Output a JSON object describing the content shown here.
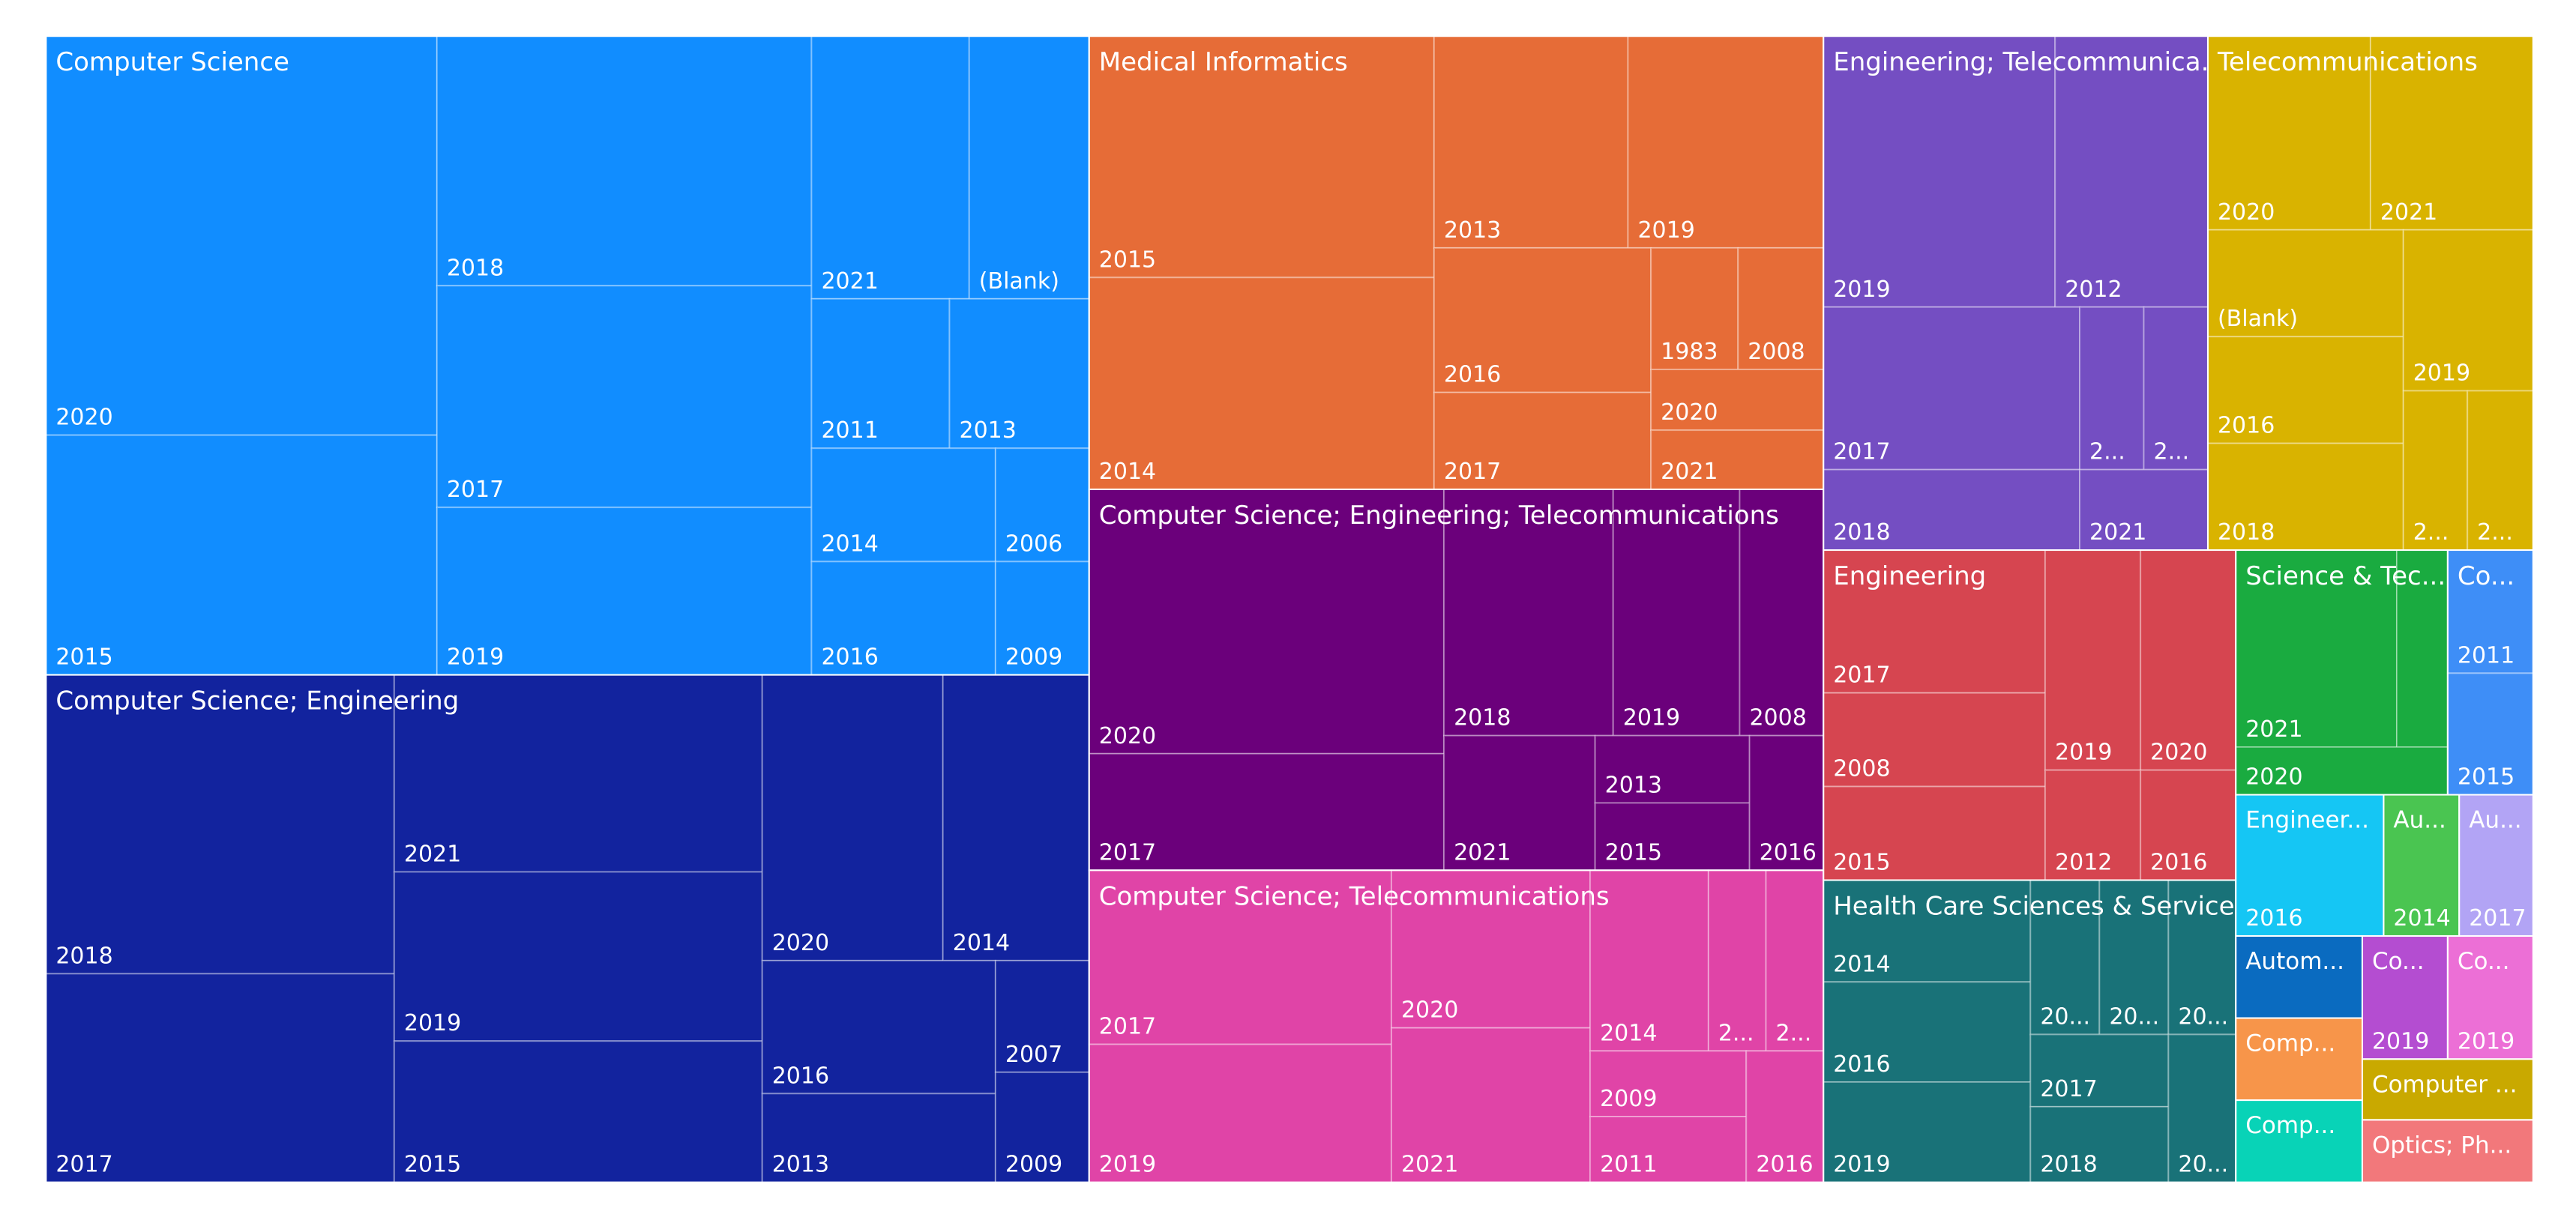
{
  "chart_data": {
    "type": "treemap",
    "title": "",
    "groups": [
      {
        "name": "Computer Science",
        "color": "#118dff",
        "items": [
          {
            "label": "2020",
            "value": 70
          },
          {
            "label": "2015",
            "value": 42
          },
          {
            "label": "2018",
            "value": 45
          },
          {
            "label": "2017",
            "value": 40
          },
          {
            "label": "2019",
            "value": 30
          },
          {
            "label": "2021",
            "value": 16
          },
          {
            "label": "(Blank)",
            "value": 13
          },
          {
            "label": "2011",
            "value": 14
          },
          {
            "label": "2013",
            "value": 12
          },
          {
            "label": "2014",
            "value": 11
          },
          {
            "label": "2006",
            "value": 5.5
          },
          {
            "label": "2016",
            "value": 11
          },
          {
            "label": "2009",
            "value": 5.5
          }
        ]
      },
      {
        "name": "Computer Science; Engineering",
        "color": "#12239e",
        "items": [
          {
            "label": "2018",
            "value": 47
          },
          {
            "label": "2017",
            "value": 35
          },
          {
            "label": "2021",
            "value": 33
          },
          {
            "label": "2019",
            "value": 30
          },
          {
            "label": "2015",
            "value": 24
          },
          {
            "label": "2020",
            "value": 26
          },
          {
            "label": "2014",
            "value": 12
          },
          {
            "label": "2016",
            "value": 17
          },
          {
            "label": "2013",
            "value": 11
          },
          {
            "label": "2007",
            "value": 7
          },
          {
            "label": "2009",
            "value": 5.5
          }
        ]
      },
      {
        "name": "Medical Informatics",
        "color": "#e66c37",
        "items": [
          {
            "label": "2015",
            "value": 33
          },
          {
            "label": "2014",
            "value": 29
          },
          {
            "label": "2013",
            "value": 18
          },
          {
            "label": "2019",
            "value": 17
          },
          {
            "label": "2016",
            "value": 15
          },
          {
            "label": "2017",
            "value": 10
          },
          {
            "label": "1983",
            "value": 4.5
          },
          {
            "label": "2008",
            "value": 4.5
          },
          {
            "label": "2020",
            "value": 3
          },
          {
            "label": "2021",
            "value": 3.5
          }
        ]
      },
      {
        "name": "Computer Science; Engineering; Telecommunications",
        "color": "#6b007b",
        "items": [
          {
            "label": "2020",
            "value": 32
          },
          {
            "label": "2017",
            "value": 15
          },
          {
            "label": "2018",
            "value": 17
          },
          {
            "label": "2021",
            "value": 9
          },
          {
            "label": "2019",
            "value": 12
          },
          {
            "label": "2008",
            "value": 6.5
          },
          {
            "label": "2013",
            "value": 5
          },
          {
            "label": "2015",
            "value": 5
          },
          {
            "label": "2016",
            "value": 5
          }
        ]
      },
      {
        "name": "Computer Science; Telecommunications",
        "color": "#e044a7",
        "items": [
          {
            "label": "2017",
            "value": 18
          },
          {
            "label": "2019",
            "value": 16
          },
          {
            "label": "2020",
            "value": 16
          },
          {
            "label": "2021",
            "value": 18
          },
          {
            "label": "2014",
            "value": 9
          },
          {
            "label": "2...",
            "value": 3
          },
          {
            "label": "2...",
            "value": 3
          },
          {
            "label": "2009",
            "value": 5
          },
          {
            "label": "2011",
            "value": 5
          },
          {
            "label": "2016",
            "value": 6
          }
        ]
      },
      {
        "name": "Engineering; Telecommunica...",
        "color": "#744ec2",
        "items": [
          {
            "label": "2019",
            "value": 19
          },
          {
            "label": "2012",
            "value": 12
          },
          {
            "label": "2017",
            "value": 13
          },
          {
            "label": "2...",
            "value": 4
          },
          {
            "label": "2...",
            "value": 4
          },
          {
            "label": "2018",
            "value": 7
          },
          {
            "label": "2021",
            "value": 4
          }
        ]
      },
      {
        "name": "Telecommunications",
        "color": "#d9b300",
        "items": [
          {
            "label": "2020",
            "value": 10
          },
          {
            "label": "2021",
            "value": 10
          },
          {
            "label": "(Blank)",
            "value": 6
          },
          {
            "label": "2016",
            "value": 6
          },
          {
            "label": "2018",
            "value": 6
          },
          {
            "label": "2019",
            "value": 6
          },
          {
            "label": "2...",
            "value": 3
          },
          {
            "label": "2...",
            "value": 3
          }
        ]
      },
      {
        "name": "Engineering",
        "color": "#d64550",
        "items": [
          {
            "label": "2017",
            "value": 11
          },
          {
            "label": "2008",
            "value": 7
          },
          {
            "label": "2015",
            "value": 7
          },
          {
            "label": "2019",
            "value": 7
          },
          {
            "label": "2020",
            "value": 7
          },
          {
            "label": "2012",
            "value": 5
          },
          {
            "label": "2016",
            "value": 5
          }
        ]
      },
      {
        "name": "Health Care Sciences & Service...",
        "color": "#197278",
        "items": [
          {
            "label": "2014",
            "value": 8
          },
          {
            "label": "2016",
            "value": 8
          },
          {
            "label": "2019",
            "value": 8
          },
          {
            "label": "20...",
            "value": 3
          },
          {
            "label": "20...",
            "value": 3
          },
          {
            "label": "20...",
            "value": 3
          },
          {
            "label": "2017",
            "value": 3
          },
          {
            "label": "2018",
            "value": 3
          },
          {
            "label": "20...",
            "value": 3
          }
        ]
      },
      {
        "name": "Science & Tec...",
        "color": "#1aab40",
        "items": [
          {
            "label": "2021",
            "value": 8
          },
          {
            "label": "",
            "value": 2
          },
          {
            "label": "2020",
            "value": 2
          }
        ]
      },
      {
        "name": "Co...",
        "color": "#3e8ef7",
        "items": [
          {
            "label": "2011",
            "value": 3
          },
          {
            "label": "2015",
            "value": 5
          }
        ]
      },
      {
        "name": "Engineer...",
        "color": "#15c6f4",
        "items": [
          {
            "label": "2016",
            "value": 4
          }
        ]
      },
      {
        "name": "Au...",
        "color": "#4ac551",
        "items": [
          {
            "label": "2014",
            "value": 2
          }
        ]
      },
      {
        "name": "Au...",
        "color": "#b2a4f5",
        "items": [
          {
            "label": "2017",
            "value": 2
          }
        ]
      },
      {
        "name": "Autom...",
        "color": "#0a6bc0",
        "items": [
          {
            "label": "",
            "value": 3
          }
        ]
      },
      {
        "name": "Co...",
        "color": "#b44dd1",
        "items": [
          {
            "label": "2019",
            "value": 3
          }
        ]
      },
      {
        "name": "Co...",
        "color": "#ec6fd6",
        "items": [
          {
            "label": "2019",
            "value": 3
          }
        ]
      },
      {
        "name": "Comp...",
        "color": "#f7954a",
        "items": [
          {
            "label": "",
            "value": 2.5
          }
        ]
      },
      {
        "name": "Computer ...",
        "color": "#c9a900",
        "items": [
          {
            "label": "",
            "value": 2
          }
        ]
      },
      {
        "name": "Comp...",
        "color": "#08d3b7",
        "items": [
          {
            "label": "",
            "value": 2.5
          }
        ]
      },
      {
        "name": "Optics; Ph...",
        "color": "#f2787b",
        "items": [
          {
            "label": "",
            "value": 2
          }
        ]
      }
    ]
  }
}
